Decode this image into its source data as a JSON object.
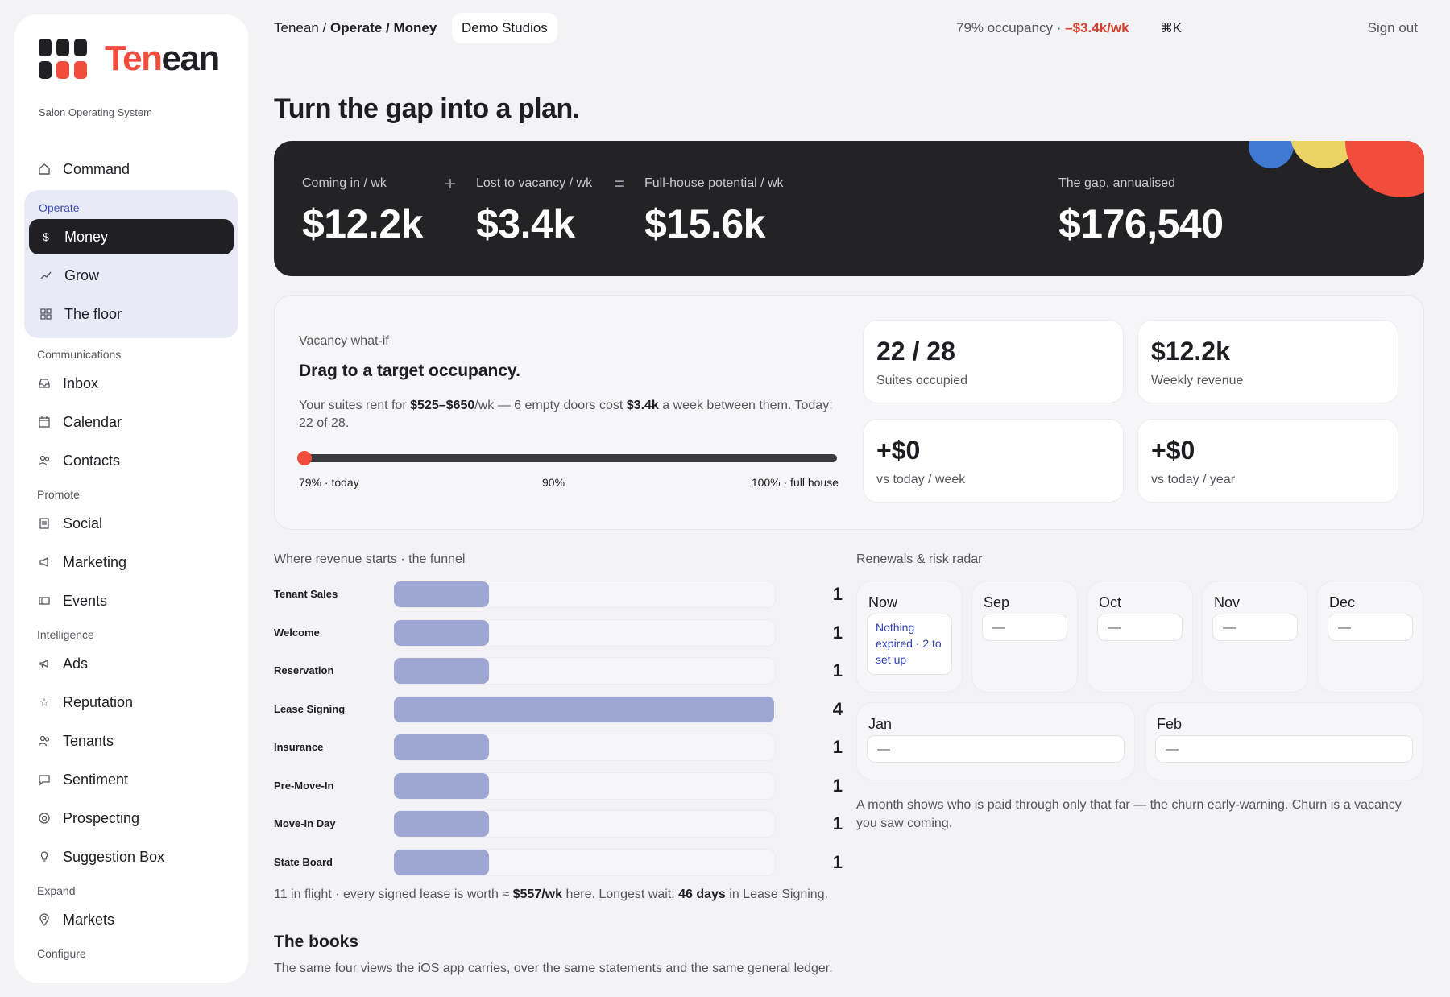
{
  "brand": {
    "name_part1": "Ten",
    "name_part2": "ean",
    "tagline": "Salon Operating System",
    "colors": {
      "accent": "#f24c3d",
      "dark": "#1f1f24",
      "bar": "#9ea6d3",
      "active_group": "#e8eaf6"
    }
  },
  "sidebar": {
    "command": {
      "label": "Command",
      "icon": "home-icon"
    },
    "operate": {
      "label": "Operate",
      "items": [
        {
          "label": "Money",
          "icon": "dollar-icon",
          "selected": true
        },
        {
          "label": "Grow",
          "icon": "trend-up-icon"
        },
        {
          "label": "The floor",
          "icon": "grid-icon"
        }
      ]
    },
    "communications": {
      "label": "Communications",
      "items": [
        {
          "label": "Inbox",
          "icon": "inbox-icon"
        },
        {
          "label": "Calendar",
          "icon": "calendar-icon"
        },
        {
          "label": "Contacts",
          "icon": "contacts-icon"
        }
      ]
    },
    "promote": {
      "label": "Promote",
      "items": [
        {
          "label": "Social",
          "icon": "social-icon"
        },
        {
          "label": "Marketing",
          "icon": "megaphone-icon"
        },
        {
          "label": "Events",
          "icon": "ticket-icon"
        }
      ]
    },
    "intelligence": {
      "label": "Intelligence",
      "items": [
        {
          "label": "Ads",
          "icon": "ads-icon"
        },
        {
          "label": "Reputation",
          "icon": "star-icon"
        },
        {
          "label": "Tenants",
          "icon": "users-icon"
        },
        {
          "label": "Sentiment",
          "icon": "chat-icon"
        },
        {
          "label": "Prospecting",
          "icon": "target-icon"
        },
        {
          "label": "Suggestion Box",
          "icon": "bulb-icon"
        }
      ]
    },
    "expand": {
      "label": "Expand",
      "items": [
        {
          "label": "Markets",
          "icon": "pin-icon"
        }
      ]
    },
    "configure": {
      "label": "Configure"
    }
  },
  "topbar": {
    "crumb_root": "Tenean",
    "crumb_sep": "/",
    "crumb_section": "Operate",
    "crumb_page": "Money",
    "studio": "Demo Studios",
    "occupancy": "79% occupancy · ",
    "loss": "–$3.4k/wk",
    "shortcut": "⌘K",
    "signout": "Sign out"
  },
  "headline": "Turn the gap into a plan.",
  "hero": {
    "coming_label": "Coming in / wk",
    "coming_value": "$12.2k",
    "plus": "+",
    "lost_label": "Lost to vacancy / wk",
    "lost_value": "$3.4k",
    "equals": "=",
    "potential_label": "Full-house potential / wk",
    "potential_value": "$15.6k",
    "gap_label": "The gap, annualised",
    "gap_value": "$176,540"
  },
  "vacancy": {
    "kicker": "Vacancy what-if",
    "title": "Drag to a target occupancy.",
    "desc_1": "Your suites rent for ",
    "desc_range": "$525–$650",
    "desc_2": "/wk — 6 empty doors cost ",
    "desc_cost": "$3.4k",
    "desc_3": " a week between them. Today: 22 of 28.",
    "slider_value": 0.79,
    "tick_min": "79% · today",
    "tick_mid": "90%",
    "tick_max": "100% · full house",
    "cards": [
      {
        "big": "22 / 28",
        "sub": "Suites occupied"
      },
      {
        "big": "$12.2k",
        "sub": "Weekly revenue"
      },
      {
        "big": "+$0",
        "sub": "vs today / week"
      },
      {
        "big": "+$0",
        "sub": "vs today / year"
      }
    ]
  },
  "funnel": {
    "title": "Where revenue starts · the funnel",
    "max": 4,
    "rows": [
      {
        "name": "Tenant Sales",
        "count": 1
      },
      {
        "name": "Welcome",
        "count": 1
      },
      {
        "name": "Reservation",
        "count": 1
      },
      {
        "name": "Lease Signing",
        "count": 4
      },
      {
        "name": "Insurance",
        "count": 1
      },
      {
        "name": "Pre-Move-In",
        "count": 1
      },
      {
        "name": "Move-In Day",
        "count": 1
      },
      {
        "name": "State Board",
        "count": 1
      }
    ],
    "note_1": "11 in flight · every signed lease is worth ≈ ",
    "note_value": "$557/wk",
    "note_2": " here. Longest wait: ",
    "note_wait": "46 days",
    "note_3": " in Lease Signing."
  },
  "renewals": {
    "title": "Renewals & risk radar",
    "now": {
      "name": "Now",
      "text": "Nothing expired · 2 to set up"
    },
    "months": [
      {
        "name": "Sep",
        "value": "—"
      },
      {
        "name": "Oct",
        "value": "—"
      },
      {
        "name": "Nov",
        "value": "—"
      },
      {
        "name": "Dec",
        "value": "—"
      },
      {
        "name": "Jan",
        "value": "—"
      },
      {
        "name": "Feb",
        "value": "—"
      }
    ],
    "note": "A month shows who is paid through only that far — the churn early-warning. Churn is a vacancy you saw coming."
  },
  "books": {
    "title": "The books",
    "desc": "The same four views the iOS app carries, over the same statements and the same general ledger."
  }
}
